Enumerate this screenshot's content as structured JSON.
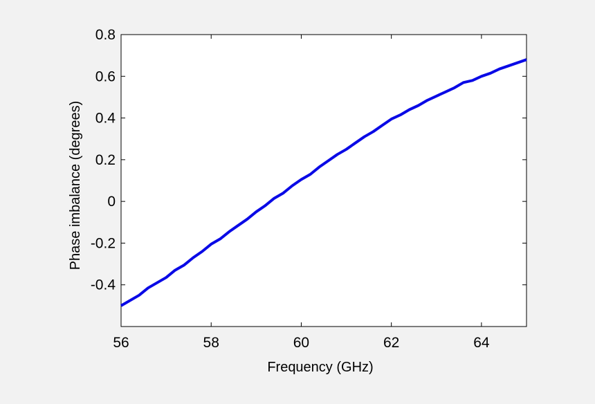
{
  "chart_data": {
    "type": "line",
    "title": "",
    "xlabel": "Frequency (GHz)",
    "ylabel": "Phase imbalance (degrees)",
    "xlim": [
      56,
      65
    ],
    "ylim": [
      -0.6,
      0.8
    ],
    "xticks": [
      56,
      58,
      60,
      62,
      64
    ],
    "yticks": [
      -0.4,
      -0.2,
      0,
      0.2,
      0.4,
      0.6,
      0.8
    ],
    "xtick_labels": [
      "56",
      "58",
      "60",
      "62",
      "64"
    ],
    "ytick_labels": [
      "-0.4",
      "-0.2",
      "0",
      "0.2",
      "0.4",
      "0.6",
      "0.8"
    ],
    "grid": false,
    "series": [
      {
        "color": "#0a0ae6",
        "x": [
          56,
          56.4,
          56.6,
          57,
          57.2,
          57.4,
          57.6,
          57.8,
          58,
          58.2,
          58.4,
          58.6,
          58.8,
          59,
          59.2,
          59.4,
          59.6,
          59.8,
          60,
          60.2,
          60.4,
          60.6,
          60.8,
          61,
          61.2,
          61.4,
          61.6,
          61.8,
          62,
          62.2,
          62.4,
          62.6,
          62.8,
          63,
          63.2,
          63.4,
          63.6,
          63.8,
          64,
          64.2,
          64.4,
          64.6,
          64.8,
          65
        ],
        "y": [
          -0.5,
          -0.45,
          -0.415,
          -0.365,
          -0.33,
          -0.305,
          -0.27,
          -0.24,
          -0.205,
          -0.18,
          -0.145,
          -0.115,
          -0.085,
          -0.05,
          -0.02,
          0.015,
          0.04,
          0.075,
          0.105,
          0.13,
          0.165,
          0.195,
          0.225,
          0.25,
          0.28,
          0.31,
          0.335,
          0.365,
          0.395,
          0.415,
          0.44,
          0.46,
          0.485,
          0.505,
          0.525,
          0.545,
          0.57,
          0.58,
          0.6,
          0.615,
          0.635,
          0.65,
          0.665,
          0.68
        ]
      }
    ]
  },
  "colors": {
    "background": "#f2f2f2",
    "plot_area": "#ffffff",
    "axes": "#000000",
    "line": "#0a0ae6"
  }
}
